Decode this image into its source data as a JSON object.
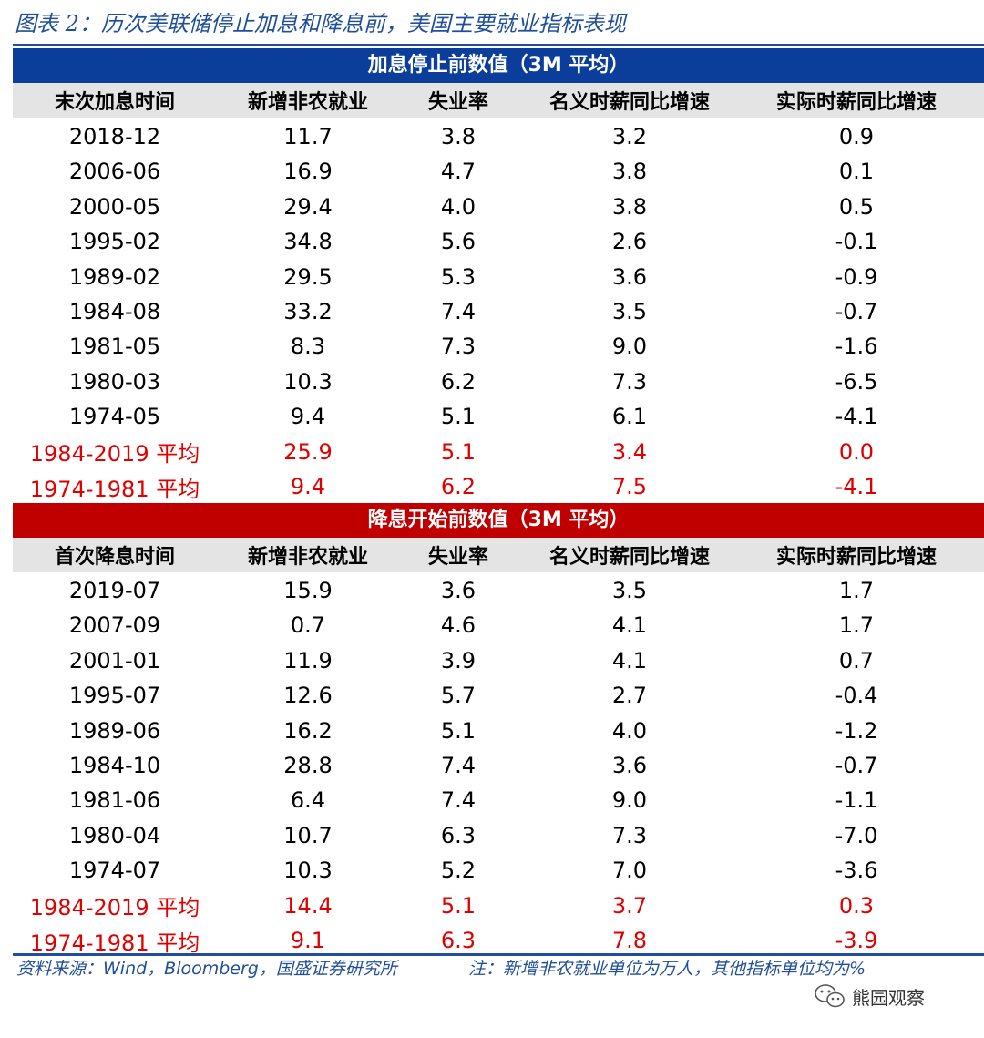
{
  "title": "图表 2：历次美联储停止加息和降息前，美国主要就业指标表现",
  "section1": {
    "banner": "加息停止前数值（3M 平均）",
    "headers": [
      "末次加息时间",
      "新增非农就业",
      "失业率",
      "名义时薪同比增速",
      "实际时薪同比增速"
    ],
    "rows": [
      [
        "2018-12",
        "11.7",
        "3.8",
        "3.2",
        "0.9"
      ],
      [
        "2006-06",
        "16.9",
        "4.7",
        "3.8",
        "0.1"
      ],
      [
        "2000-05",
        "29.4",
        "4.0",
        "3.8",
        "0.5"
      ],
      [
        "1995-02",
        "34.8",
        "5.6",
        "2.6",
        "-0.1"
      ],
      [
        "1989-02",
        "29.5",
        "5.3",
        "3.6",
        "-0.9"
      ],
      [
        "1984-08",
        "33.2",
        "7.4",
        "3.5",
        "-0.7"
      ],
      [
        "1981-05",
        "8.3",
        "7.3",
        "9.0",
        "-1.6"
      ],
      [
        "1980-03",
        "10.3",
        "6.2",
        "7.3",
        "-6.5"
      ],
      [
        "1974-05",
        "9.4",
        "5.1",
        "6.1",
        "-4.1"
      ]
    ],
    "averages": [
      [
        "1984-2019 平均",
        "25.9",
        "5.1",
        "3.4",
        "0.0"
      ],
      [
        "1974-1981 平均",
        "9.4",
        "6.2",
        "7.5",
        "-4.1"
      ]
    ]
  },
  "section2": {
    "banner": "降息开始前数值（3M 平均）",
    "headers": [
      "首次降息时间",
      "新增非农就业",
      "失业率",
      "名义时薪同比增速",
      "实际时薪同比增速"
    ],
    "rows": [
      [
        "2019-07",
        "15.9",
        "3.6",
        "3.5",
        "1.7"
      ],
      [
        "2007-09",
        "0.7",
        "4.6",
        "4.1",
        "1.7"
      ],
      [
        "2001-01",
        "11.9",
        "3.9",
        "4.1",
        "0.7"
      ],
      [
        "1995-07",
        "12.6",
        "5.7",
        "2.7",
        "-0.4"
      ],
      [
        "1989-06",
        "16.2",
        "5.1",
        "4.0",
        "-1.2"
      ],
      [
        "1984-10",
        "28.8",
        "7.4",
        "3.6",
        "-0.7"
      ],
      [
        "1981-06",
        "6.4",
        "7.4",
        "9.0",
        "-1.1"
      ],
      [
        "1980-04",
        "10.7",
        "6.3",
        "7.3",
        "-7.0"
      ],
      [
        "1974-07",
        "10.3",
        "5.2",
        "7.0",
        "-3.6"
      ]
    ],
    "averages": [
      [
        "1984-2019 平均",
        "14.4",
        "5.1",
        "3.7",
        "0.3"
      ],
      [
        "1974-1981 平均",
        "9.1",
        "6.3",
        "7.8",
        "-3.9"
      ]
    ]
  },
  "source": "资料来源：Wind，Bloomberg，国盛证券研究所",
  "note": "注：新增非农就业单位为万人，其他指标单位均为%",
  "watermark": "熊园观察",
  "watermark_icon": "wechat-icon",
  "colors": {
    "title": "#1f4e9a",
    "section1_bar": "#0b3e9a",
    "section2_bar": "#c00000",
    "header_bg": "#e4e4e4",
    "average_text": "#e00000"
  }
}
